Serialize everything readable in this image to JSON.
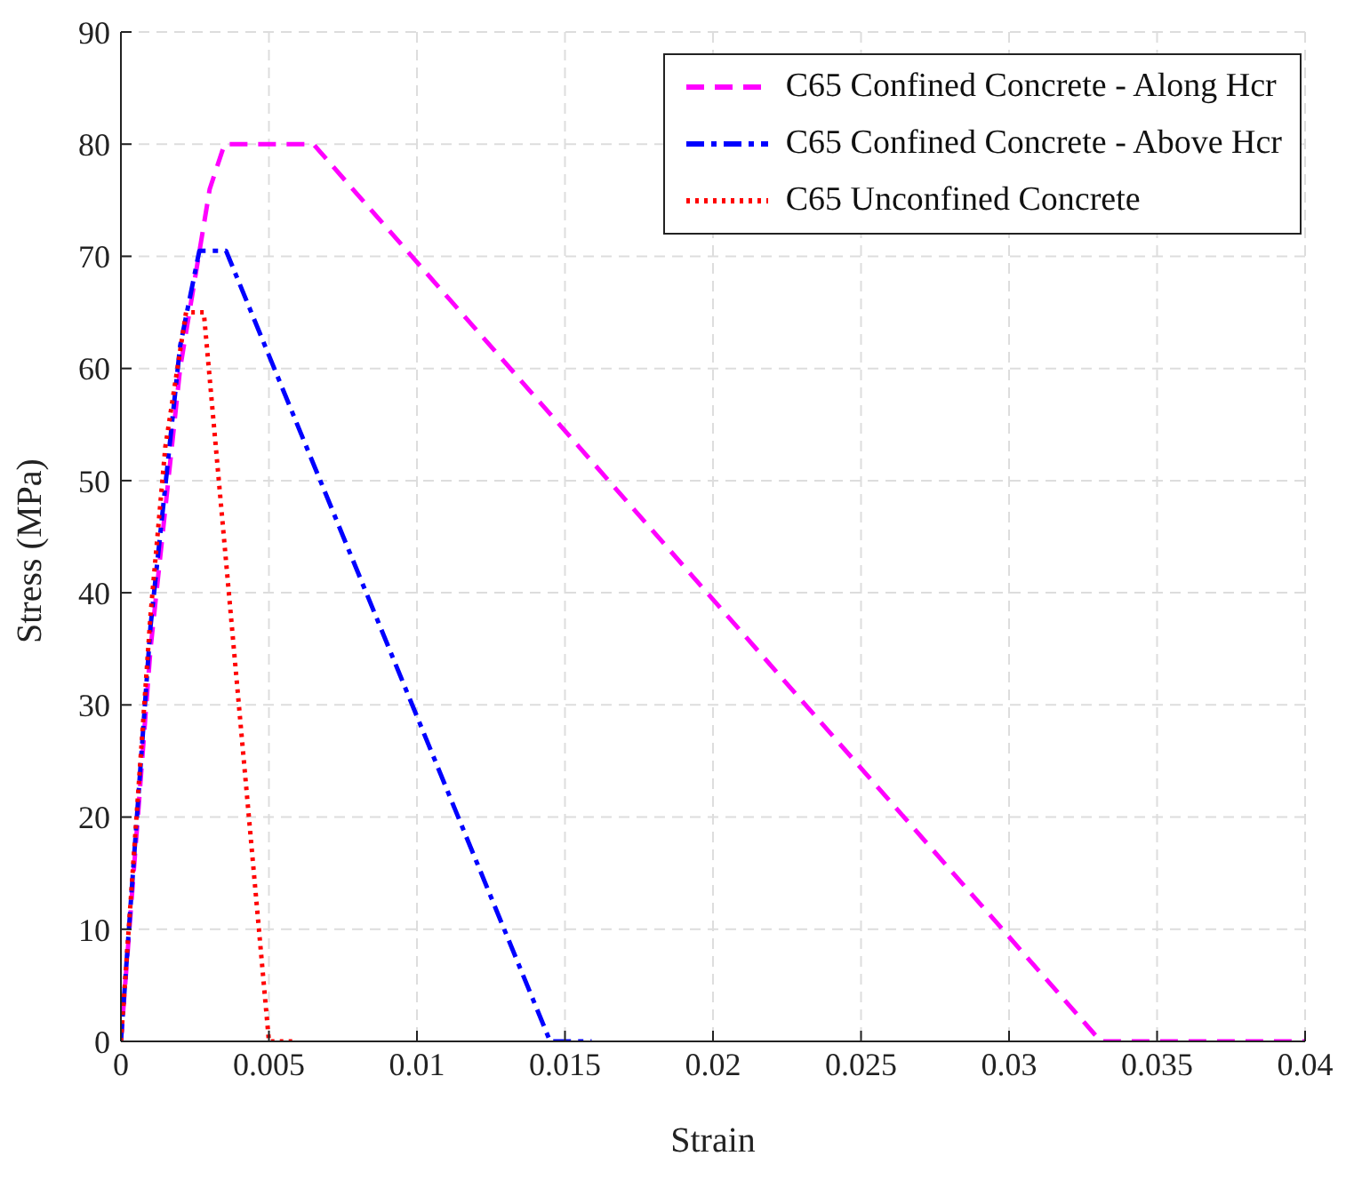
{
  "chart_data": {
    "type": "line",
    "xlabel": "Strain",
    "ylabel": "Stress (MPa)",
    "xlim": [
      0,
      0.04
    ],
    "xticks": [
      0,
      0.005,
      0.01,
      0.015,
      0.02,
      0.025,
      0.03,
      0.035,
      0.04
    ],
    "ylim": [
      0,
      90
    ],
    "yticks": [
      0,
      10,
      20,
      30,
      40,
      50,
      60,
      70,
      80,
      90
    ],
    "grid": true,
    "legend": "top right",
    "marker": "none",
    "series": [
      {
        "name": "C65 Confined Concrete - Along Hcr",
        "color": "#ff00ff",
        "line_style": "dashed",
        "x": [
          0,
          0.001,
          0.002,
          0.003,
          0.0035,
          0.0065,
          0.0331,
          0.04
        ],
        "values": [
          0,
          35,
          60,
          76,
          80,
          80,
          0,
          0
        ]
      },
      {
        "name": "C65 Confined Concrete - Above Hcr",
        "color": "#0000ff",
        "line_style": "dashdot",
        "x": [
          0,
          0.001,
          0.002,
          0.00265,
          0.00355,
          0.0145,
          0.0159
        ],
        "values": [
          0,
          37,
          62,
          70.5,
          70.5,
          0,
          0
        ]
      },
      {
        "name": "C65 Unconfined Concrete",
        "color": "#ff0000",
        "line_style": "dotted",
        "x": [
          0,
          0.001,
          0.0015,
          0.0022,
          0.0028,
          0.005,
          0.0059
        ],
        "values": [
          0,
          38,
          53,
          65,
          65,
          0,
          0
        ]
      }
    ]
  }
}
